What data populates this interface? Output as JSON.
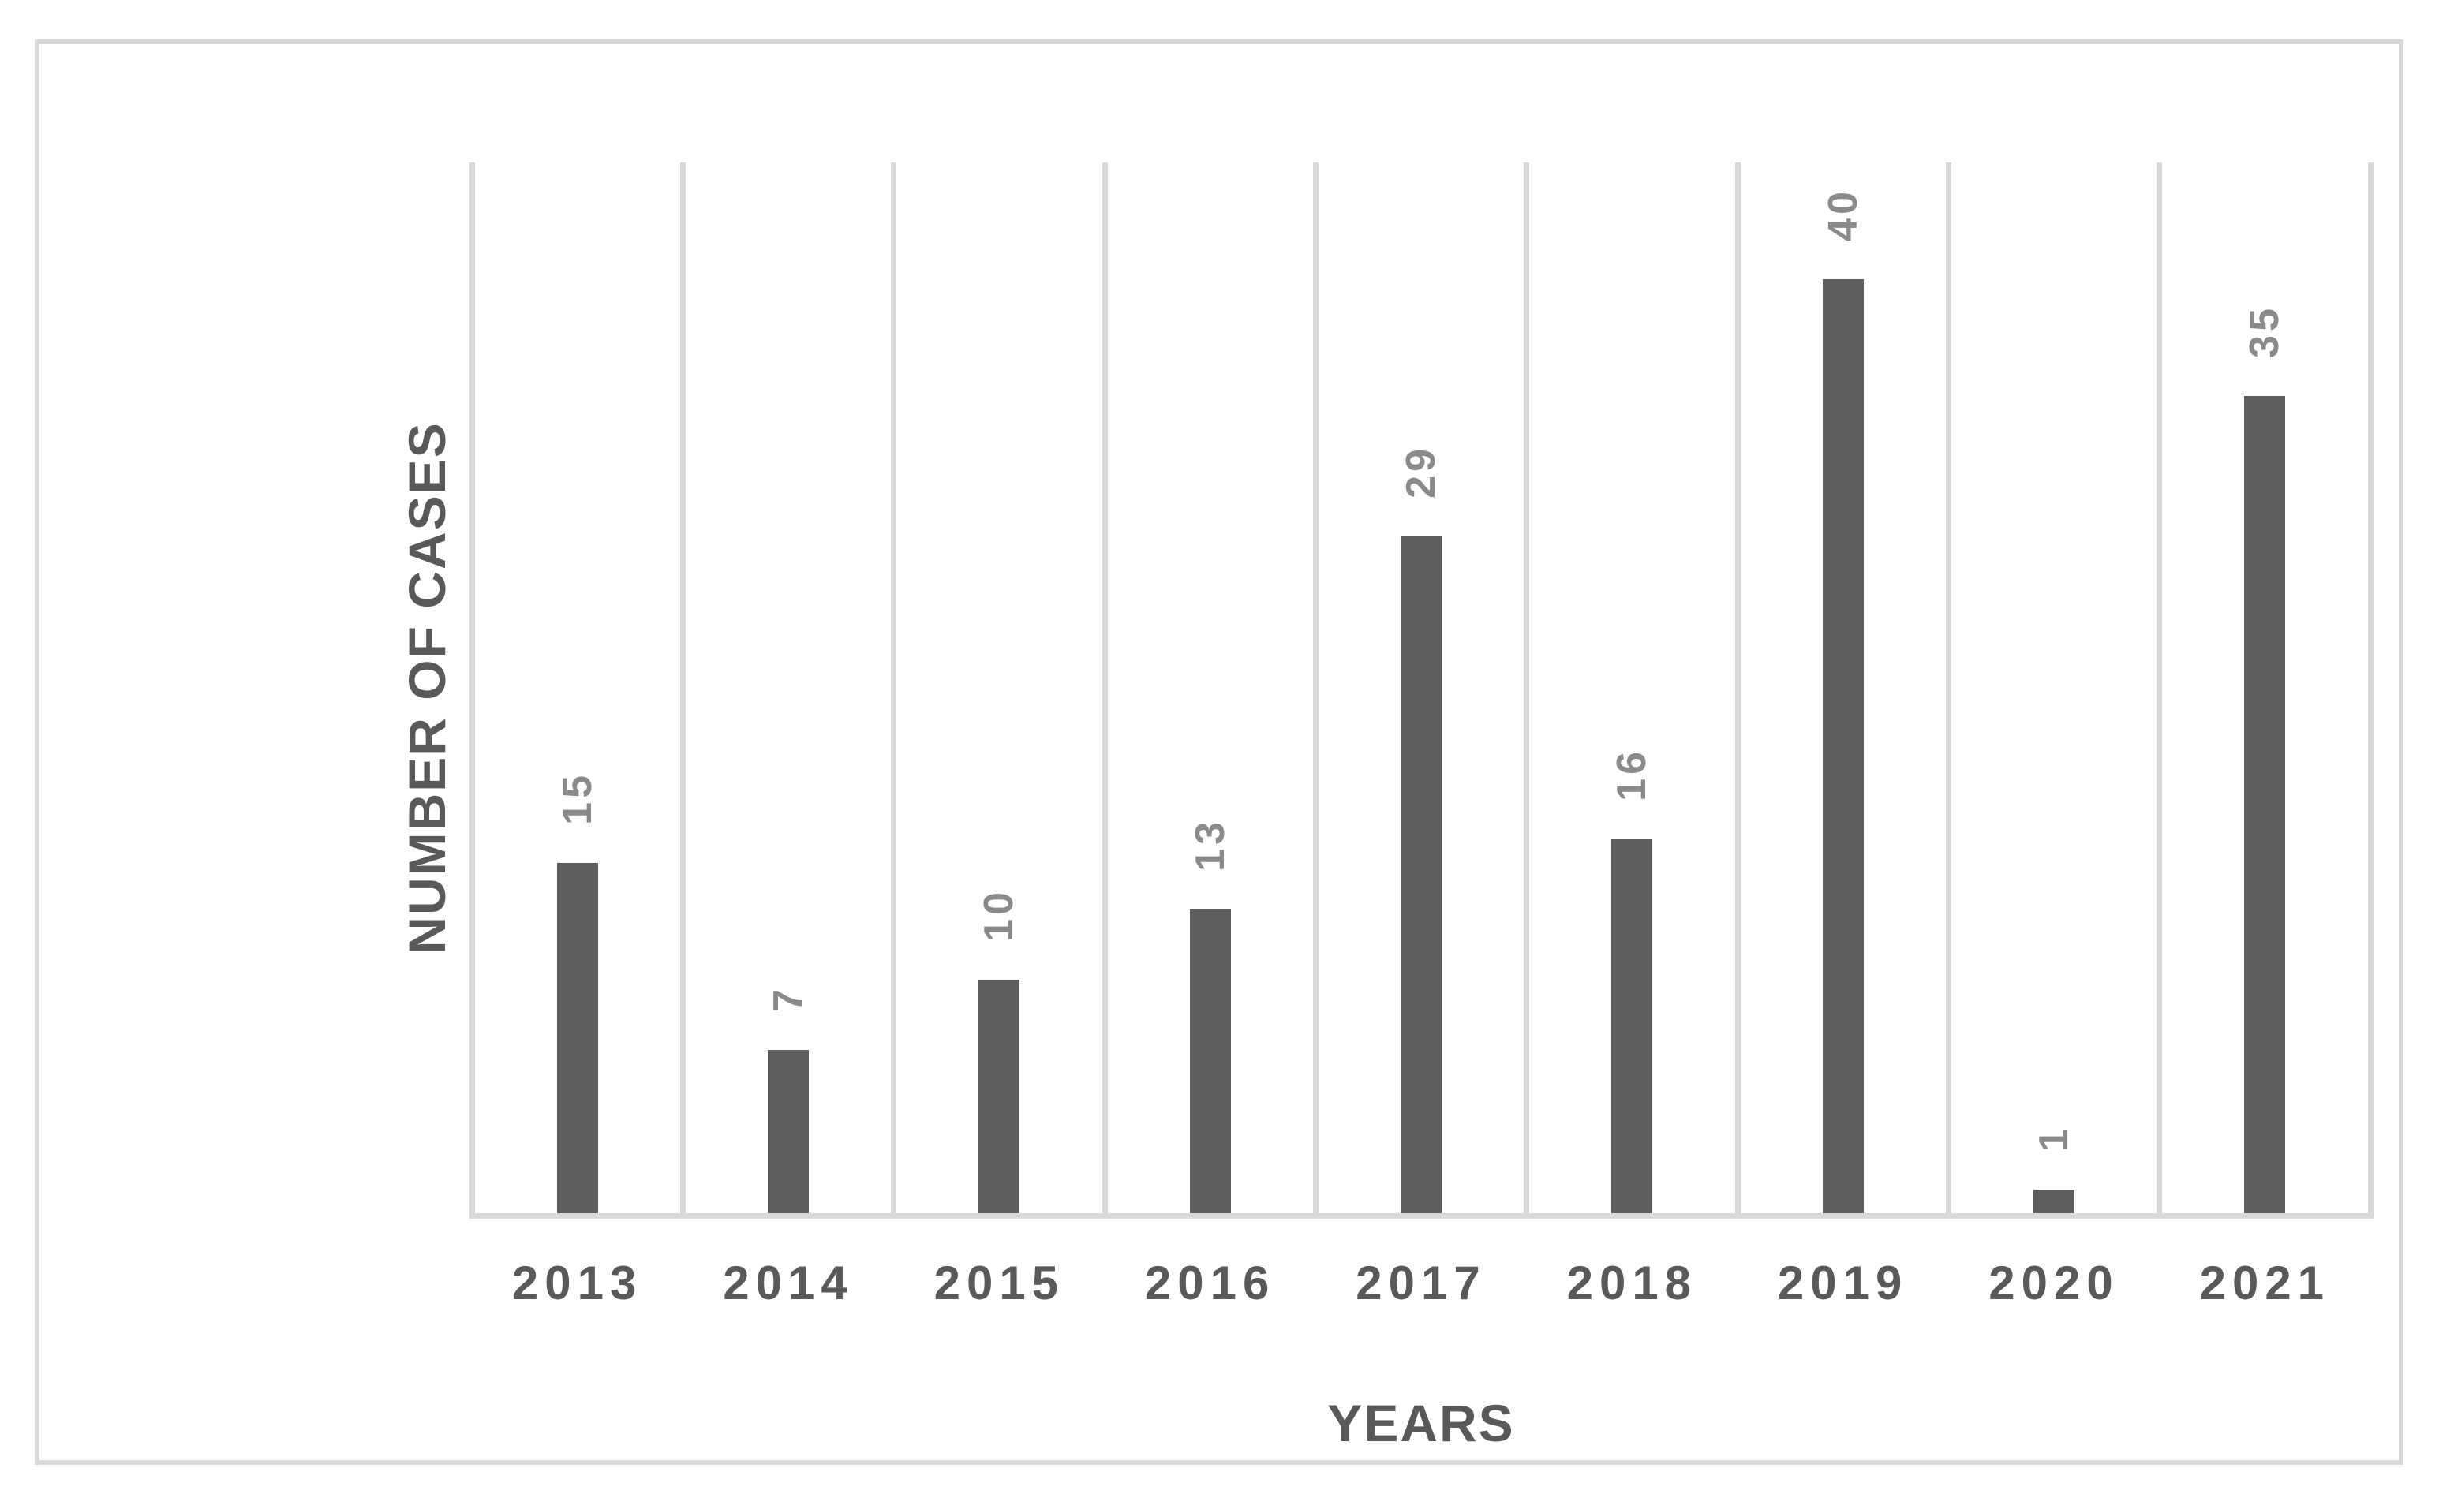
{
  "chart_data": {
    "type": "bar",
    "categories": [
      "2013",
      "2014",
      "2015",
      "2016",
      "2017",
      "2018",
      "2019",
      "2020",
      "2021"
    ],
    "values": [
      15,
      7,
      10,
      13,
      29,
      16,
      40,
      1,
      35
    ],
    "title": "",
    "xlabel": "YEARS",
    "ylabel": "NUMBER OF CASES",
    "ylim": [
      0,
      45
    ],
    "grid": "vertical-only",
    "legend": "none",
    "value_labels": "rotated-90-above-bars",
    "colors": {
      "bar": "#5E5E5E",
      "value_label": "#8A8A8A",
      "axis_text": "#595959",
      "gridline": "#D9D9D9",
      "frame_border": "#D9D9D9",
      "background": "#FFFFFF"
    }
  }
}
